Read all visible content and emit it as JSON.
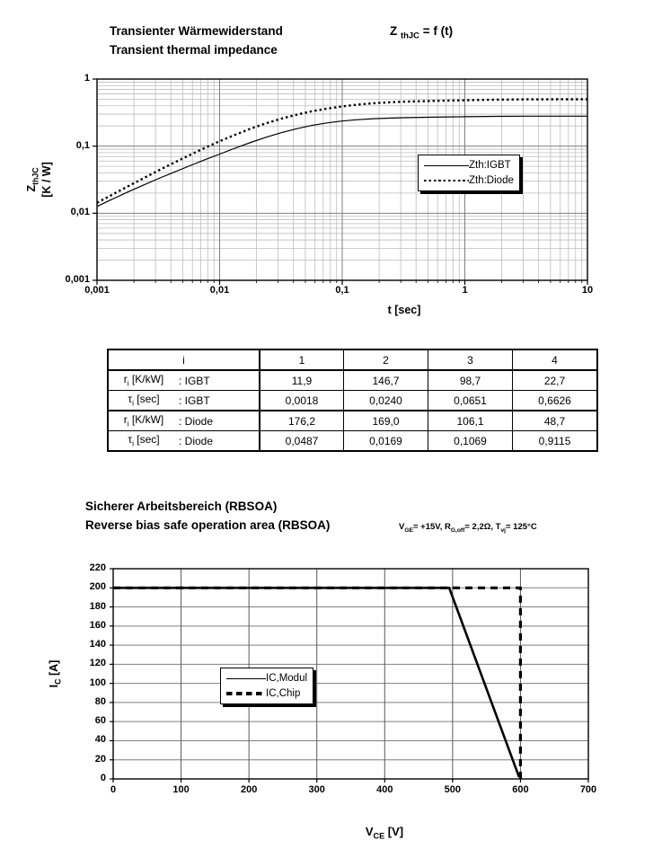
{
  "texts": {
    "zth_title_de": "Transienter Wärmewiderstand",
    "zth_title_en": "Transient thermal impedance",
    "formula": [
      {
        "t": "Z "
      },
      {
        "s": "thJC"
      },
      {
        "t": " = f (t)"
      }
    ],
    "zth_ylabel_1": [
      {
        "t": "Z"
      },
      {
        "s": "thJC"
      }
    ],
    "zth_ylabel_2": "[K / W]",
    "zth_xlabel": "t [sec]",
    "rbsoa_title_de": "Sicherer Arbeitsbereich (RBSOA)",
    "rbsoa_title_en": "Reverse bias safe operation area (RBSOA)",
    "rbsoa_conditions": [
      {
        "t": "V"
      },
      {
        "s": "GE"
      },
      {
        "t": "= +15V, R"
      },
      {
        "s": "G,off"
      },
      {
        "t": "= 2,2Ω,  T"
      },
      {
        "s": "vj"
      },
      {
        "t": "= 125°C"
      }
    ],
    "rbsoa_ylabel": [
      {
        "t": "I"
      },
      {
        "s": "C"
      },
      {
        "t": " [A]"
      }
    ],
    "rbsoa_xlabel": [
      {
        "t": "V"
      },
      {
        "s": "CE"
      },
      {
        "t": " [V]"
      }
    ]
  },
  "chart_data": [
    {
      "id": "zth-transient-thermal-impedance",
      "type": "line",
      "title": "Transienter Wärmewiderstand / Transient thermal impedance, ZthJC = f(t)",
      "xlabel": "t [sec]",
      "ylabel": "ZthJC [K / W]",
      "x_scale": "log",
      "y_scale": "log",
      "xlim": [
        0.001,
        10
      ],
      "ylim": [
        0.001,
        1
      ],
      "x_ticks": [
        "0,001",
        "0,01",
        "0,1",
        "1",
        "10"
      ],
      "x_tick_vals": [
        0.001,
        0.01,
        0.1,
        1,
        10
      ],
      "y_ticks": [
        "1",
        "0,1",
        "0,01",
        "0,001"
      ],
      "y_tick_vals": [
        1,
        0.1,
        0.01,
        0.001
      ],
      "grid": "log major + minor, both axes",
      "grid_major": "#7f7f7f",
      "grid_minor": "#bdbdbd",
      "line_color": "#000000",
      "legend_position": "right-center",
      "series": [
        {
          "name": "Zth:IGBT",
          "line": "solid",
          "t": [
            0.001,
            0.0013,
            0.0018,
            0.0024,
            0.0032,
            0.0042,
            0.0056,
            0.0075,
            0.01,
            0.013,
            0.018,
            0.024,
            0.032,
            0.042,
            0.056,
            0.075,
            0.1,
            0.13,
            0.18,
            0.24,
            0.32,
            0.56,
            1,
            1.8,
            3.2,
            5.6,
            10
          ],
          "z": [
            0.0126,
            0.0159,
            0.0209,
            0.0264,
            0.0331,
            0.0406,
            0.0502,
            0.0621,
            0.0762,
            0.0916,
            0.1137,
            0.1359,
            0.1593,
            0.1814,
            0.2032,
            0.2221,
            0.237,
            0.2473,
            0.2564,
            0.2617,
            0.2653,
            0.2702,
            0.275,
            0.2785,
            0.2798,
            0.28,
            0.28
          ]
        },
        {
          "name": "Zth:Diode",
          "line": "dotted",
          "t": [
            0.001,
            0.0013,
            0.0018,
            0.0024,
            0.0032,
            0.0042,
            0.0056,
            0.0075,
            0.01,
            0.013,
            0.018,
            0.024,
            0.032,
            0.042,
            0.056,
            0.075,
            0.1,
            0.13,
            0.18,
            0.24,
            0.32,
            0.56,
            1,
            1.8,
            3.2,
            5.6,
            10
          ],
          "z": [
            0.0143,
            0.0185,
            0.0253,
            0.0333,
            0.0437,
            0.0561,
            0.0725,
            0.0933,
            0.1182,
            0.1448,
            0.1826,
            0.2193,
            0.2576,
            0.2934,
            0.3294,
            0.3628,
            0.3917,
            0.414,
            0.4359,
            0.4501,
            0.4602,
            0.4731,
            0.4837,
            0.4932,
            0.4986,
            0.4999,
            0.5
          ]
        }
      ]
    },
    {
      "id": "rbsoa",
      "type": "line",
      "title": "Sicherer Arbeitsbereich (RBSOA) / Reverse bias safe operation area (RBSOA)",
      "conditions": "VGE= +15V, RG,off= 2,2Ω, Tvj= 125°C",
      "xlabel": "VCE [V]",
      "ylabel": "IC [A]",
      "x_scale": "linear",
      "y_scale": "linear",
      "xlim": [
        0,
        700
      ],
      "ylim": [
        0,
        220
      ],
      "x_ticks": [
        "0",
        "100",
        "200",
        "300",
        "400",
        "500",
        "600",
        "700"
      ],
      "x_tick_vals": [
        0,
        100,
        200,
        300,
        400,
        500,
        600,
        700
      ],
      "y_ticks": [
        "0",
        "20",
        "40",
        "60",
        "80",
        "100",
        "120",
        "140",
        "160",
        "180",
        "200",
        "220"
      ],
      "y_tick_vals": [
        0,
        20,
        40,
        60,
        80,
        100,
        120,
        140,
        160,
        180,
        200,
        220
      ],
      "grid": "major grid both axes",
      "grid_h": "#7f7f7f",
      "grid_v": "#595959",
      "line_color": "#000000",
      "legend_position": "left-center",
      "series": [
        {
          "name": "IC,Modul",
          "line": "solid",
          "points": [
            [
              0,
              200
            ],
            [
              495,
              200
            ],
            [
              598,
              2
            ]
          ]
        },
        {
          "name": "IC,Chip",
          "line": "dashed",
          "points": [
            [
              0,
              200
            ],
            [
              600,
              200
            ],
            [
              600,
              0
            ]
          ]
        }
      ]
    }
  ],
  "table": {
    "header": [
      "i",
      "1",
      "2",
      "3",
      "4"
    ],
    "rows": [
      {
        "label": [
          {
            "t": "r"
          },
          {
            "s": "i"
          },
          {
            "t": " [K/kW]"
          }
        ],
        "device": ": IGBT",
        "values": [
          "11,9",
          "146,7",
          "98,7",
          "22,7"
        ]
      },
      {
        "label": [
          {
            "t": "τ"
          },
          {
            "s": "i"
          },
          {
            "t": " [sec]"
          }
        ],
        "device": ": IGBT",
        "values": [
          "0,0018",
          "0,0240",
          "0,0651",
          "0,6626"
        ]
      },
      {
        "label": [
          {
            "t": "r"
          },
          {
            "s": "i"
          },
          {
            "t": " [K/kW]"
          }
        ],
        "device": ": Diode",
        "values": [
          "176,2",
          "169,0",
          "106,1",
          "48,7"
        ]
      },
      {
        "label": [
          {
            "t": "τ"
          },
          {
            "s": "i"
          },
          {
            "t": " [sec]"
          }
        ],
        "device": ": Diode",
        "values": [
          "0,0487",
          "0,0169",
          "0,1069",
          "0,9115"
        ]
      }
    ]
  }
}
